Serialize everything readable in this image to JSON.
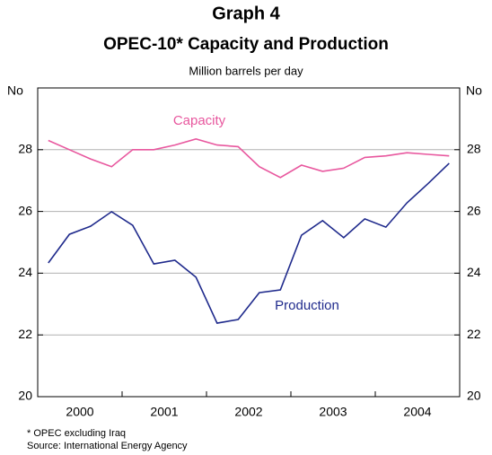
{
  "chart_data": {
    "type": "line",
    "title": "Graph 4",
    "subtitle": "OPEC-10* Capacity and Production",
    "unit_note": "Million barrels per day",
    "y_unit": "No",
    "year_labels": [
      "2000",
      "2001",
      "2002",
      "2003",
      "2004"
    ],
    "series": [
      {
        "name": "Capacity",
        "color": "#e8579e",
        "values": [
          28.3,
          28.0,
          27.7,
          27.45,
          28.0,
          28.0,
          28.15,
          28.35,
          28.15,
          28.1,
          27.45,
          27.1,
          27.5,
          27.3,
          27.4,
          27.75,
          27.8,
          27.9,
          27.85,
          27.8
        ]
      },
      {
        "name": "Production",
        "color": "#1f2a8c",
        "values": [
          24.33,
          25.26,
          25.52,
          25.99,
          25.55,
          24.3,
          24.42,
          23.87,
          22.38,
          22.5,
          23.37,
          23.46,
          25.23,
          25.7,
          25.15,
          25.76,
          25.49,
          26.28,
          26.9,
          27.56
        ]
      }
    ],
    "ylim": [
      20,
      30
    ],
    "yticks": [
      20,
      22,
      24,
      26,
      28
    ],
    "grid": true,
    "footnote": "*   OPEC excluding Iraq",
    "source": "Source: International Energy Agency"
  }
}
